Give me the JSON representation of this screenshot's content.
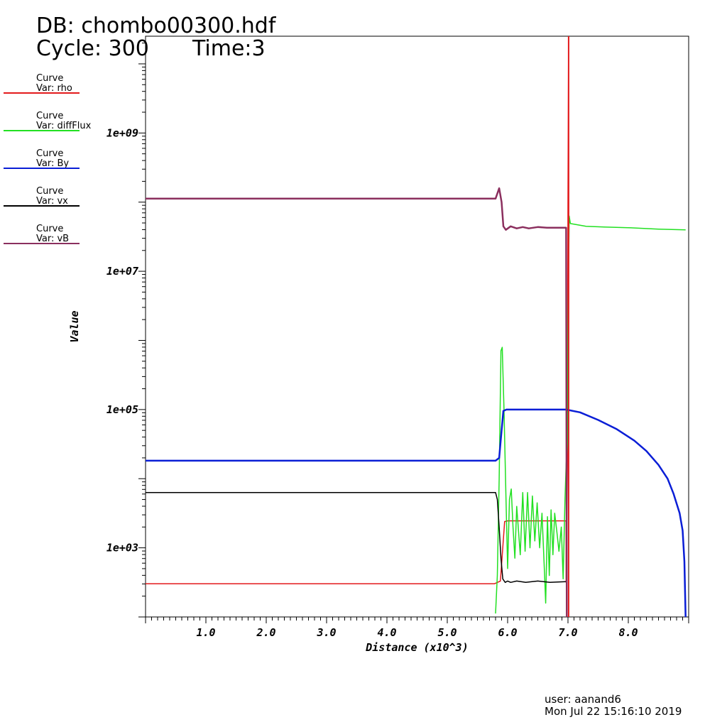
{
  "header": {
    "db": "DB: chombo00300.hdf",
    "cycle": "Cycle: 300",
    "time": "Time:3"
  },
  "legend": [
    {
      "title": "Curve",
      "var": "Var: rho",
      "color": "#e31a1c"
    },
    {
      "title": "Curve",
      "var": "Var: diffFlux",
      "color": "#22e022"
    },
    {
      "title": "Curve",
      "var": "Var: By",
      "color": "#0a1ed6"
    },
    {
      "title": "Curve",
      "var": "Var: vx",
      "color": "#000000"
    },
    {
      "title": "Curve",
      "var": "Var: vB",
      "color": "#8b2f5e"
    }
  ],
  "footer": {
    "user": "user: aanand6",
    "date": "Mon Jul 22 15:16:10 2019"
  },
  "chart_data": {
    "type": "line",
    "xlabel": "Distance (x10^3)",
    "ylabel": "Value",
    "x_scale": "linear",
    "y_scale": "log",
    "xlim": [
      0,
      9.0
    ],
    "ylim_log10": [
      2.0,
      10.4
    ],
    "x_ticks": [
      "1.0",
      "2.0",
      "3.0",
      "4.0",
      "5.0",
      "6.0",
      "7.0",
      "8.0"
    ],
    "x_tick_values": [
      1,
      2,
      3,
      4,
      5,
      6,
      7,
      8
    ],
    "y_ticks": [
      "1e+03",
      "1e+05",
      "1e+07",
      "1e+09"
    ],
    "y_tick_values_log10": [
      3,
      5,
      7,
      9
    ],
    "series": [
      {
        "name": "rho",
        "color": "#e31a1c",
        "points": [
          [
            0,
            2.48
          ],
          [
            5.78,
            2.48
          ],
          [
            5.88,
            2.52
          ],
          [
            5.95,
            3.38
          ],
          [
            6.0,
            3.39
          ],
          [
            6.97,
            3.39
          ],
          [
            6.97,
            2.5
          ],
          [
            6.99,
            4.2
          ],
          [
            7.0,
            8.0
          ],
          [
            7.01,
            10.4
          ]
        ]
      },
      {
        "name": "diffFlux",
        "color": "#22e022",
        "points": [
          [
            5.8,
            2.05
          ],
          [
            5.83,
            2.6
          ],
          [
            5.86,
            4.0
          ],
          [
            5.89,
            5.85
          ],
          [
            5.91,
            5.9
          ],
          [
            5.94,
            5.0
          ],
          [
            5.97,
            3.8
          ],
          [
            6.0,
            2.7
          ],
          [
            6.03,
            3.7
          ],
          [
            6.06,
            3.85
          ],
          [
            6.09,
            3.3
          ],
          [
            6.12,
            2.85
          ],
          [
            6.15,
            3.6
          ],
          [
            6.18,
            3.25
          ],
          [
            6.21,
            2.9
          ],
          [
            6.25,
            3.8
          ],
          [
            6.29,
            2.95
          ],
          [
            6.33,
            3.8
          ],
          [
            6.37,
            3.0
          ],
          [
            6.41,
            3.75
          ],
          [
            6.45,
            3.1
          ],
          [
            6.49,
            3.65
          ],
          [
            6.53,
            3.0
          ],
          [
            6.57,
            3.5
          ],
          [
            6.61,
            2.65
          ],
          [
            6.63,
            2.2
          ],
          [
            6.66,
            3.45
          ],
          [
            6.69,
            2.6
          ],
          [
            6.72,
            3.55
          ],
          [
            6.75,
            2.9
          ],
          [
            6.78,
            3.5
          ],
          [
            6.82,
            3.2
          ],
          [
            6.85,
            2.95
          ],
          [
            6.89,
            3.3
          ],
          [
            6.92,
            2.55
          ],
          [
            6.95,
            3.7
          ],
          [
            6.97,
            4.2
          ],
          [
            6.99,
            4.5
          ],
          [
            7.0,
            6.05
          ],
          [
            7.01,
            7.0
          ],
          [
            7.02,
            7.8
          ],
          [
            7.04,
            7.69
          ],
          [
            7.3,
            7.65
          ],
          [
            7.6,
            7.64
          ],
          [
            8.0,
            7.63
          ],
          [
            8.5,
            7.61
          ],
          [
            8.95,
            7.6
          ]
        ]
      },
      {
        "name": "By",
        "color": "#0a1ed6",
        "points": [
          [
            0,
            4.26
          ],
          [
            5.8,
            4.26
          ],
          [
            5.86,
            4.3
          ],
          [
            5.9,
            4.7
          ],
          [
            5.93,
            4.98
          ],
          [
            5.98,
            5.0
          ],
          [
            6.97,
            5.0
          ],
          [
            7.2,
            4.96
          ],
          [
            7.5,
            4.85
          ],
          [
            7.8,
            4.72
          ],
          [
            8.1,
            4.55
          ],
          [
            8.3,
            4.4
          ],
          [
            8.5,
            4.2
          ],
          [
            8.65,
            4.0
          ],
          [
            8.75,
            3.78
          ],
          [
            8.85,
            3.5
          ],
          [
            8.9,
            3.25
          ],
          [
            8.93,
            2.8
          ],
          [
            8.95,
            2.0
          ]
        ]
      },
      {
        "name": "vx",
        "color": "#000000",
        "points": [
          [
            0,
            3.8
          ],
          [
            5.8,
            3.8
          ],
          [
            5.83,
            3.7
          ],
          [
            5.86,
            3.3
          ],
          [
            5.89,
            2.85
          ],
          [
            5.92,
            2.55
          ],
          [
            5.96,
            2.5
          ],
          [
            6.0,
            2.52
          ],
          [
            6.05,
            2.5
          ],
          [
            6.15,
            2.52
          ],
          [
            6.3,
            2.5
          ],
          [
            6.5,
            2.52
          ],
          [
            6.7,
            2.5
          ],
          [
            6.97,
            2.51
          ]
        ]
      },
      {
        "name": "vB",
        "color": "#8b2f5e",
        "points": [
          [
            0,
            8.05
          ],
          [
            5.8,
            8.05
          ],
          [
            5.86,
            8.2
          ],
          [
            5.9,
            8.0
          ],
          [
            5.93,
            7.65
          ],
          [
            5.97,
            7.6
          ],
          [
            6.05,
            7.65
          ],
          [
            6.15,
            7.62
          ],
          [
            6.25,
            7.64
          ],
          [
            6.35,
            7.62
          ],
          [
            6.5,
            7.64
          ],
          [
            6.65,
            7.63
          ],
          [
            6.8,
            7.63
          ],
          [
            6.97,
            7.63
          ],
          [
            6.98,
            2.0
          ]
        ]
      },
      {
        "name": "rho-spike",
        "color": "#e31a1c",
        "points": [
          [
            7.01,
            2.0
          ],
          [
            7.01,
            10.4
          ]
        ]
      }
    ]
  }
}
